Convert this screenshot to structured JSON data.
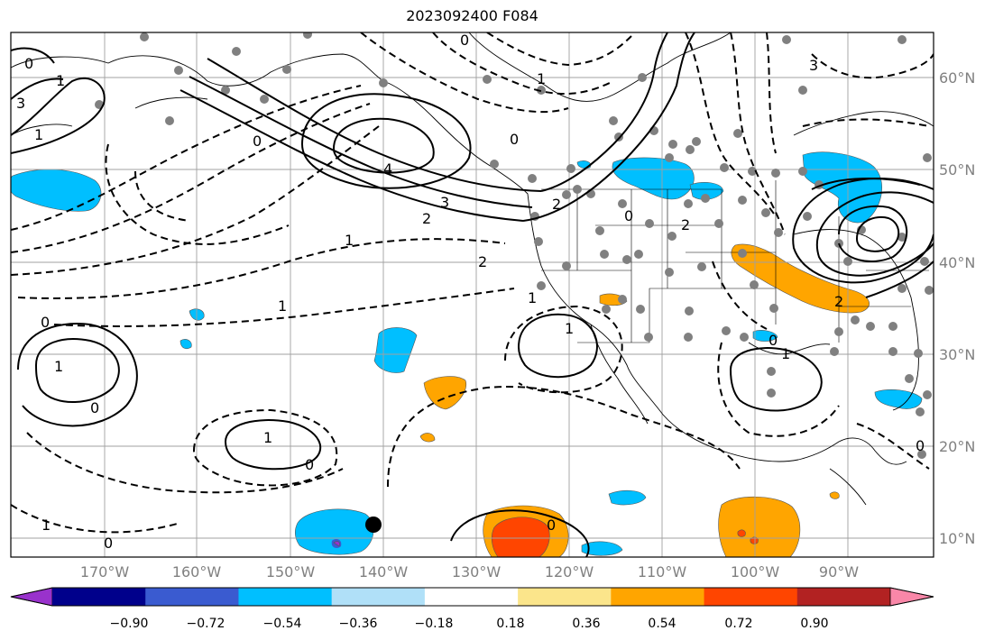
{
  "title": "2023092400 F084",
  "map": {
    "lon_labels": [
      "170°W",
      "160°W",
      "150°W",
      "140°W",
      "130°W",
      "120°W",
      "110°W",
      "100°W",
      "90°W"
    ],
    "lat_labels": [
      "60°N",
      "50°N",
      "40°N",
      "30°N",
      "20°N",
      "10°N"
    ],
    "contour_labels": [
      "0",
      "1",
      "3",
      "1",
      "0",
      "2",
      "4",
      "3",
      "2",
      "0",
      "1",
      "2",
      "1",
      "0",
      "1",
      "2",
      "0",
      "0",
      "1",
      "0",
      "1",
      "1",
      "0",
      "0",
      "1",
      "3",
      "1",
      "0",
      "0",
      "2",
      "0",
      "1"
    ],
    "storm_marker": "black-dot"
  },
  "colorbar": {
    "colors": [
      "#9932cc",
      "#00008b",
      "#3a5bd0",
      "#00bfff",
      "#b0e0f8",
      "#ffffff",
      "#fbe58b",
      "#ffa500",
      "#ff4500",
      "#b22222",
      "#f987a8"
    ],
    "ticks": [
      "−0.90",
      "−0.72",
      "−0.54",
      "−0.36",
      "−0.18",
      "0.18",
      "0.36",
      "0.54",
      "0.72",
      "0.90"
    ]
  }
}
